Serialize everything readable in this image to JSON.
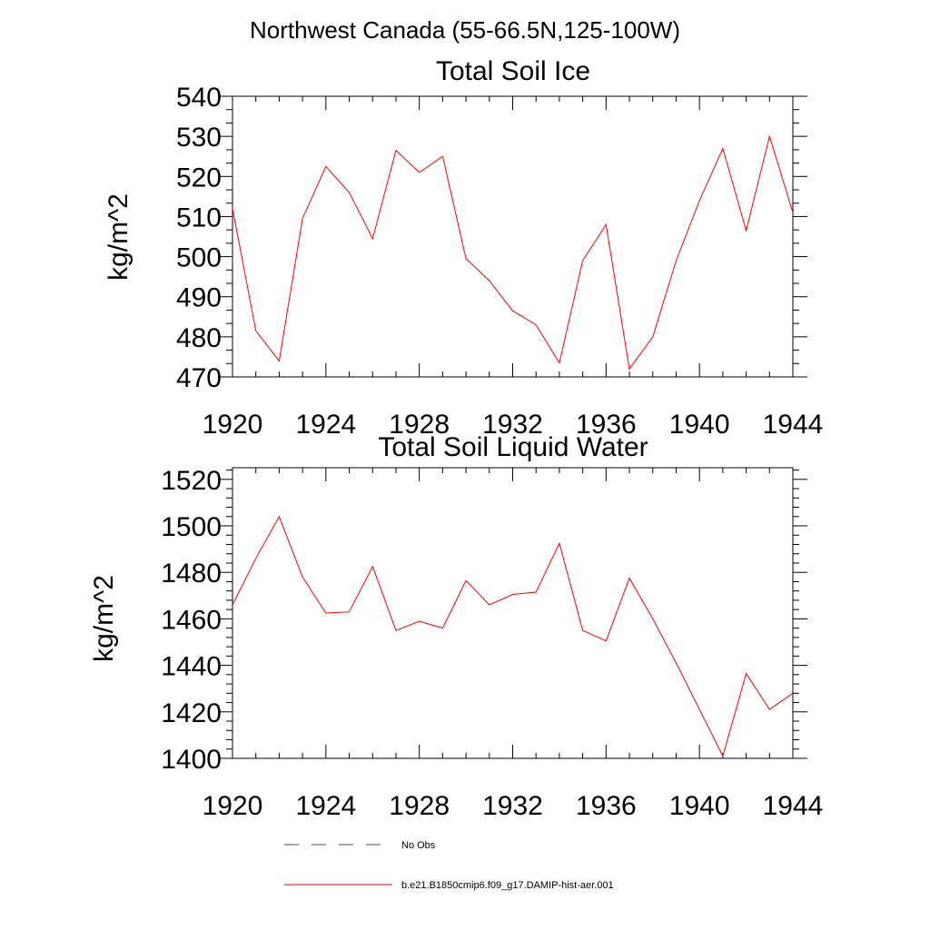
{
  "page_title": "Northwest Canada (55-66.5N,125-100W)",
  "chart_data": [
    {
      "type": "line",
      "title": "Total Soil Ice",
      "ylabel": "kg/m^2",
      "xlabel": "",
      "xlim": [
        1920,
        1944
      ],
      "ylim": [
        470,
        540
      ],
      "x_ticks": [
        1920,
        1924,
        1928,
        1932,
        1936,
        1940,
        1944
      ],
      "y_ticks": [
        470,
        480,
        490,
        500,
        510,
        520,
        530,
        540
      ],
      "x": [
        1920,
        1921,
        1922,
        1923,
        1924,
        1925,
        1926,
        1927,
        1928,
        1929,
        1930,
        1931,
        1932,
        1933,
        1934,
        1935,
        1936,
        1937,
        1938,
        1939,
        1940,
        1941,
        1942,
        1943,
        1944
      ],
      "series": [
        {
          "name": "b.e21.B1850cmip6.f09_g17.DAMIP-hist-aer.001",
          "color": "#ff0000",
          "values": [
            512,
            481.5,
            474,
            509.5,
            522.5,
            516,
            504.5,
            526.5,
            521,
            525,
            499.5,
            494,
            486.5,
            483,
            473.5,
            499,
            508,
            472,
            480,
            499,
            514,
            527,
            506.5,
            530,
            511
          ]
        }
      ]
    },
    {
      "type": "line",
      "title": "Total Soil Liquid Water",
      "ylabel": "kg/m^2",
      "xlabel": "",
      "xlim": [
        1920,
        1944
      ],
      "ylim": [
        1400,
        1525
      ],
      "x_ticks": [
        1920,
        1924,
        1928,
        1932,
        1936,
        1940,
        1944
      ],
      "y_ticks": [
        1400,
        1420,
        1440,
        1460,
        1480,
        1500,
        1520
      ],
      "x": [
        1920,
        1921,
        1922,
        1923,
        1924,
        1925,
        1926,
        1927,
        1928,
        1929,
        1930,
        1931,
        1932,
        1933,
        1934,
        1935,
        1936,
        1937,
        1938,
        1939,
        1940,
        1941,
        1942,
        1943,
        1944
      ],
      "series": [
        {
          "name": "b.e21.B1850cmip6.f09_g17.DAMIP-hist-aer.001",
          "color": "#ff0000",
          "values": [
            1466,
            1486,
            1504,
            1478,
            1462.5,
            1463,
            1482.5,
            1455,
            1459,
            1456,
            1476.5,
            1466,
            1470.5,
            1471.5,
            1492.5,
            1455,
            1450.5,
            1477.5,
            1460,
            1441,
            1421,
            1401,
            1436.5,
            1421,
            1428
          ]
        }
      ]
    }
  ],
  "legend": {
    "items": [
      {
        "label": "No Obs",
        "style": "dashed",
        "color": "#4a4a7a"
      },
      {
        "label": "b.e21.B1850cmip6.f09_g17.DAMIP-hist-aer.001",
        "style": "solid",
        "color": "#ff0000"
      }
    ]
  }
}
